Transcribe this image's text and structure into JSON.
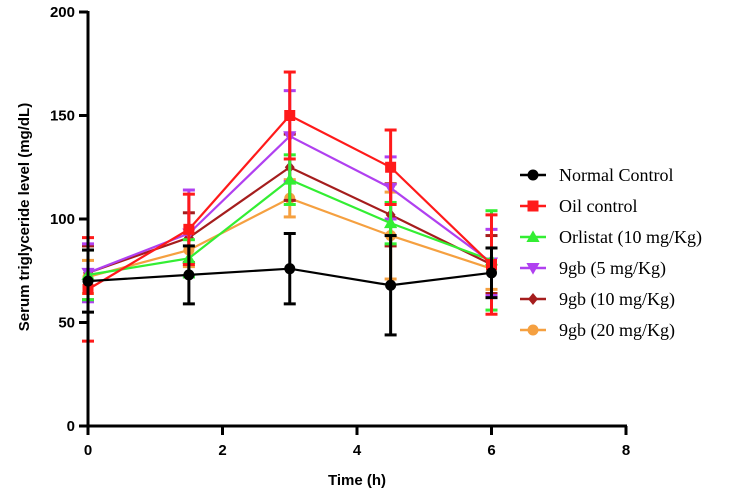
{
  "chart_data": {
    "type": "line",
    "xlabel": "Time (h)",
    "ylabel": "Serum triglyceride level (mg/dL)",
    "xlim": [
      0,
      8
    ],
    "ylim": [
      0,
      200
    ],
    "xticks": [
      0,
      2,
      4,
      6,
      8
    ],
    "yticks": [
      0,
      50,
      100,
      150,
      200
    ],
    "x": [
      0,
      1.5,
      3,
      4.5,
      6
    ],
    "grid": false,
    "legend_position": "right",
    "series": [
      {
        "name": "Normal Control",
        "color": "#000000",
        "marker": "circle",
        "values": [
          70,
          73,
          76,
          68,
          74
        ],
        "errors": [
          15,
          14,
          17,
          24,
          12
        ]
      },
      {
        "name": "Oil control",
        "color": "#ff1a1a",
        "marker": "square",
        "values": [
          66,
          95,
          150,
          125,
          78
        ],
        "errors": [
          25,
          17,
          21,
          18,
          24
        ]
      },
      {
        "name": "Orlistat (10 mg/Kg)",
        "color": "#33ee33",
        "marker": "triangle-up",
        "values": [
          73,
          81,
          119,
          98,
          80
        ],
        "errors": [
          12,
          9,
          12,
          10,
          24
        ]
      },
      {
        "name": "9gb (5 mg/Kg)",
        "color": "#b040f0",
        "marker": "triangle-down",
        "values": [
          74,
          93,
          140,
          115,
          79
        ],
        "errors": [
          14,
          21,
          22,
          15,
          16
        ]
      },
      {
        "name": "9gb (10 mg/Kg)",
        "color": "#a51d1d",
        "marker": "diamond",
        "values": [
          74,
          91,
          125,
          102,
          78
        ],
        "errors": [
          13,
          12,
          16,
          15,
          14
        ]
      },
      {
        "name": "9gb (20 mg/Kg)",
        "color": "#f5a040",
        "marker": "circle",
        "values": [
          72,
          85,
          110,
          92,
          76
        ],
        "errors": [
          8,
          8,
          9,
          21,
          10
        ]
      }
    ]
  }
}
